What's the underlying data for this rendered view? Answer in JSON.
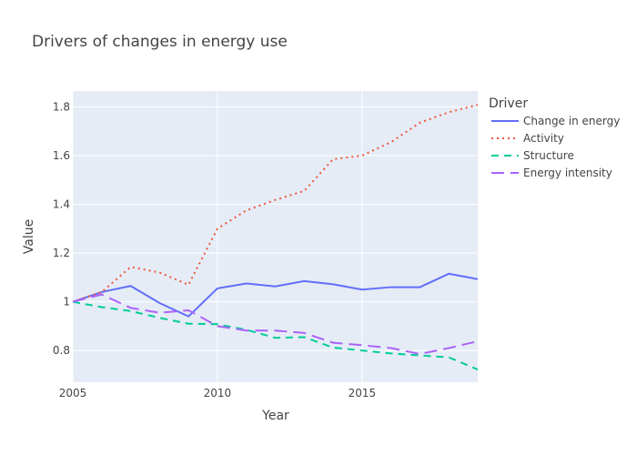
{
  "chart_data": {
    "type": "line",
    "title": "Drivers of changes in energy use",
    "xlabel": "Year",
    "ylabel": "Value",
    "xlim": [
      2005,
      2019
    ],
    "ylim": [
      0.67,
      1.865
    ],
    "x_ticks": [
      2005,
      2010,
      2015
    ],
    "y_ticks": [
      0.8,
      1,
      1.2,
      1.4,
      1.6,
      1.8
    ],
    "grid": true,
    "legend_title": "Driver",
    "legend_position": "right",
    "x": [
      2005,
      2006,
      2007,
      2008,
      2009,
      2010,
      2011,
      2012,
      2013,
      2014,
      2015,
      2016,
      2017,
      2018,
      2019
    ],
    "series": [
      {
        "name": "Change in energy",
        "color": "#636efa",
        "dash": "solid",
        "values": [
          1.0,
          1.04,
          1.065,
          0.995,
          0.94,
          1.055,
          1.075,
          1.063,
          1.085,
          1.072,
          1.05,
          1.06,
          1.06,
          1.115,
          1.093
        ]
      },
      {
        "name": "Activity",
        "color": "#ef553b",
        "dash": "dot",
        "values": [
          1.0,
          1.04,
          1.143,
          1.12,
          1.07,
          1.3,
          1.375,
          1.418,
          1.455,
          1.585,
          1.6,
          1.655,
          1.735,
          1.778,
          1.808
        ]
      },
      {
        "name": "Structure",
        "color": "#00cc96",
        "dash": "dash",
        "values": [
          1.0,
          0.978,
          0.962,
          0.934,
          0.91,
          0.908,
          0.885,
          0.852,
          0.855,
          0.812,
          0.8,
          0.788,
          0.78,
          0.772,
          0.722
        ]
      },
      {
        "name": "Energy intensity",
        "color": "#ab63fa",
        "dash": "longdash",
        "values": [
          1.0,
          1.03,
          0.975,
          0.955,
          0.965,
          0.9,
          0.882,
          0.882,
          0.872,
          0.832,
          0.822,
          0.81,
          0.786,
          0.81,
          0.838
        ]
      }
    ]
  }
}
